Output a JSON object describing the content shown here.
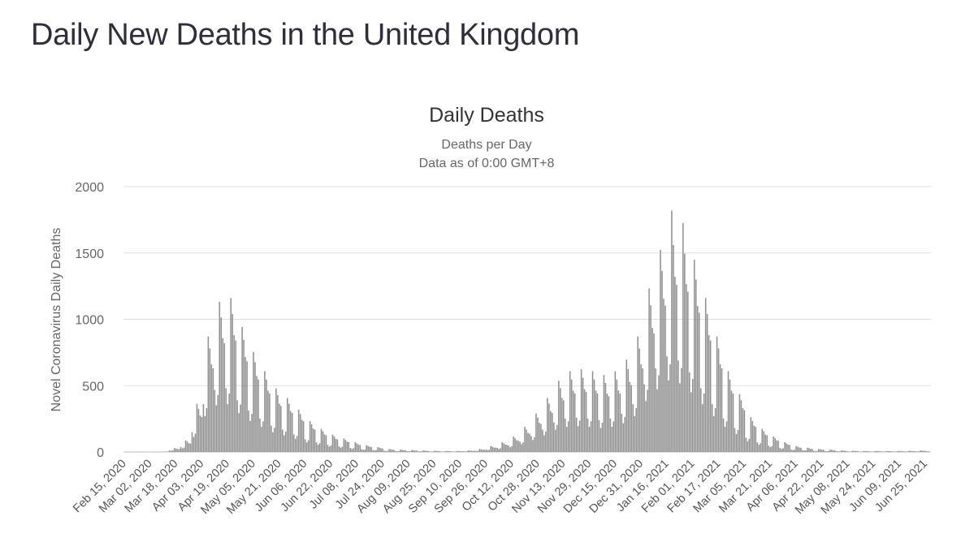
{
  "page": {
    "title": "Daily New Deaths in the United Kingdom"
  },
  "chart_data": {
    "type": "bar",
    "title": "Daily Deaths",
    "subtitle": "Deaths per Day",
    "subtitle2": "Data as of 0:00 GMT+8",
    "xlabel": "",
    "ylabel": "Novel Coronavirus Daily Deaths",
    "ylim": [
      0,
      2000
    ],
    "yticks": [
      0,
      500,
      1000,
      1500,
      2000
    ],
    "grid": true,
    "legend": "none",
    "bar_color": "#909090",
    "x_start_date": "2020-02-15",
    "x_range_days": [
      0,
      500
    ],
    "tick_interval_days": 16,
    "xtick_labels": [
      "Feb 15, 2020",
      "Mar 02, 2020",
      "Mar 18, 2020",
      "Apr 03, 2020",
      "Apr 19, 2020",
      "May 05, 2020",
      "May 21, 2020",
      "Jun 06, 2020",
      "Jun 22, 2020",
      "Jul 08, 2020",
      "Jul 24, 2020",
      "Aug 09, 2020",
      "Aug 25, 2020",
      "Sep 10, 2020",
      "Sep 26, 2020",
      "Oct 12, 2020",
      "Oct 28, 2020",
      "Nov 13, 2020",
      "Nov 29, 2020",
      "Dec 15, 2020",
      "Dec 31, 2020",
      "Jan 16, 2021",
      "Feb 01, 2021",
      "Feb 17, 2021",
      "Mar 05, 2021",
      "Mar 21, 2021",
      "Apr 06, 2021",
      "Apr 22, 2021",
      "May 08, 2021",
      "May 24, 2021",
      "Jun 09, 2021",
      "Jun 25, 2021"
    ],
    "values": [
      0,
      0,
      0,
      0,
      0,
      0,
      0,
      0,
      0,
      0,
      0,
      0,
      0,
      0,
      0,
      0,
      0,
      0,
      0,
      0,
      0,
      0,
      0,
      1,
      2,
      1,
      1,
      2,
      12,
      9,
      11,
      29,
      26,
      22,
      21,
      36,
      27,
      33,
      87,
      78,
      66,
      63,
      150,
      113,
      138,
      363,
      325,
      275,
      263,
      360,
      270,
      330,
      870,
      780,
      660,
      630,
      468,
      351,
      429,
      1131,
      1014,
      858,
      819,
      480,
      360,
      440,
      1160,
      1040,
      880,
      840,
      390,
      293,
      358,
      943,
      845,
      715,
      683,
      312,
      234,
      286,
      754,
      676,
      572,
      546,
      252,
      189,
      231,
      609,
      546,
      462,
      441,
      198,
      149,
      182,
      479,
      429,
      363,
      347,
      168,
      126,
      154,
      406,
      364,
      308,
      294,
      132,
      99,
      121,
      319,
      286,
      242,
      231,
      96,
      72,
      88,
      232,
      208,
      176,
      168,
      72,
      54,
      66,
      174,
      156,
      132,
      126,
      54,
      41,
      50,
      131,
      117,
      99,
      95,
      42,
      32,
      39,
      102,
      91,
      77,
      74,
      30,
      23,
      28,
      73,
      65,
      55,
      53,
      21,
      16,
      19,
      51,
      46,
      39,
      37,
      15,
      11,
      14,
      36,
      33,
      28,
      26,
      9,
      7,
      8,
      22,
      20,
      17,
      16,
      7,
      5,
      7,
      17,
      16,
      13,
      13,
      6,
      5,
      6,
      15,
      13,
      11,
      11,
      5,
      4,
      4,
      12,
      10,
      9,
      8,
      4,
      3,
      3,
      9,
      8,
      7,
      6,
      3,
      2,
      3,
      7,
      7,
      6,
      5,
      3,
      2,
      3,
      7,
      7,
      6,
      5,
      5,
      4,
      4,
      12,
      10,
      9,
      8,
      9,
      7,
      8,
      22,
      20,
      17,
      16,
      18,
      14,
      17,
      44,
      39,
      33,
      32,
      30,
      23,
      28,
      73,
      65,
      55,
      53,
      48,
      36,
      44,
      116,
      104,
      88,
      84,
      78,
      59,
      72,
      189,
      169,
      143,
      137,
      120,
      90,
      110,
      290,
      260,
      220,
      210,
      168,
      126,
      154,
      406,
      364,
      308,
      294,
      222,
      167,
      204,
      537,
      481,
      407,
      389,
      252,
      189,
      231,
      609,
      546,
      462,
      441,
      258,
      194,
      237,
      624,
      559,
      473,
      452,
      252,
      189,
      231,
      609,
      546,
      462,
      441,
      240,
      180,
      220,
      580,
      520,
      440,
      420,
      252,
      189,
      231,
      609,
      546,
      462,
      441,
      288,
      216,
      264,
      696,
      624,
      528,
      504,
      360,
      270,
      330,
      870,
      780,
      660,
      630,
      510,
      383,
      468,
      1233,
      1105,
      935,
      893,
      630,
      473,
      578,
      1523,
      1365,
      1155,
      1103,
      720,
      540,
      660,
      1820,
      1560,
      1320,
      1260,
      690,
      518,
      633,
      1725,
      1495,
      1265,
      1208,
      600,
      450,
      550,
      1450,
      1300,
      1100,
      1050,
      480,
      360,
      440,
      1160,
      1040,
      880,
      840,
      360,
      270,
      330,
      870,
      780,
      660,
      630,
      252,
      189,
      231,
      609,
      546,
      462,
      441,
      180,
      135,
      165,
      435,
      390,
      330,
      315,
      108,
      81,
      99,
      261,
      234,
      198,
      189,
      72,
      54,
      66,
      174,
      156,
      132,
      126,
      48,
      36,
      44,
      116,
      104,
      88,
      84,
      30,
      23,
      28,
      73,
      65,
      55,
      53,
      18,
      14,
      17,
      44,
      39,
      33,
      32,
      13,
      10,
      12,
      32,
      29,
      24,
      23,
      9,
      7,
      8,
      22,
      20,
      17,
      16,
      7,
      5,
      7,
      17,
      16,
      13,
      13,
      5,
      4,
      4,
      12,
      10,
      9,
      8,
      4,
      3,
      3,
      9,
      8,
      7,
      6,
      3,
      2,
      3,
      7,
      7,
      6,
      5,
      3,
      2,
      3,
      7,
      7,
      6,
      5,
      3,
      2,
      3,
      7,
      7,
      6,
      5,
      3,
      2,
      3,
      7,
      7,
      6,
      5,
      4,
      3,
      3,
      9,
      8,
      7,
      6,
      5,
      4,
      4,
      12,
      10,
      9,
      8,
      5,
      4
    ]
  }
}
